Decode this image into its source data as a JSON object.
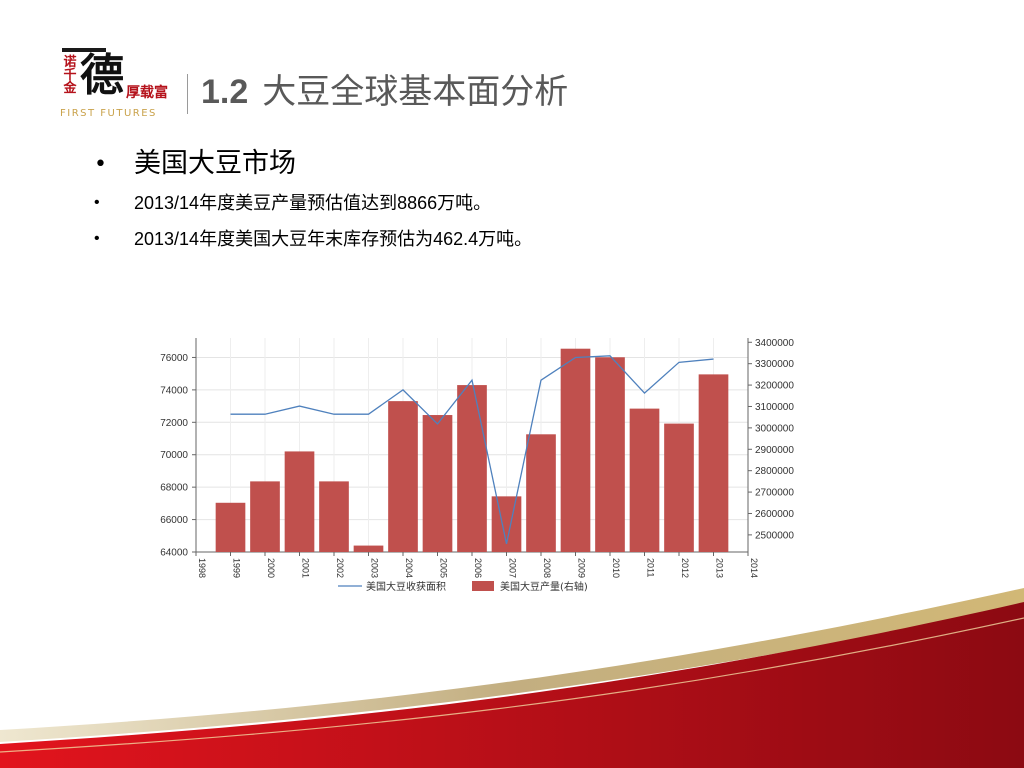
{
  "logo": {
    "small_chars": "诺千金",
    "big_char": "德",
    "slogan": "厚载富",
    "english": "FIRST FUTURES"
  },
  "title": {
    "number": "1.2",
    "text": "大豆全球基本面分析"
  },
  "bullets": [
    "美国大豆市场",
    "2013/14年度美豆产量预估值达到8866万吨。",
    "2013/14年度美国大豆年末库存预估为462.4万吨。"
  ],
  "colors": {
    "bar": "#c0504d",
    "line": "#4f81bd",
    "title_text": "#595959",
    "brand_red": "#b5121b",
    "gold": "#c9a24b"
  },
  "chart_data": {
    "type": "bar+line",
    "x_ticks": [
      "1998",
      "1999",
      "2000",
      "2001",
      "2002",
      "2003",
      "2004",
      "2005",
      "2006",
      "2007",
      "2008",
      "2009",
      "2010",
      "2011",
      "2012",
      "2013",
      "2014"
    ],
    "x": [
      "1999",
      "2000",
      "2001",
      "2002",
      "2003",
      "2004",
      "2005",
      "2006",
      "2007",
      "2008",
      "2009",
      "2010",
      "2011",
      "2012",
      "2013"
    ],
    "series": [
      {
        "name": "美国大豆收获面积",
        "type": "line",
        "axis": "left",
        "values": [
          72500,
          72500,
          73000,
          72500,
          72500,
          74000,
          71900,
          74600,
          64500,
          74600,
          76000,
          76100,
          73800,
          75700,
          75900
        ]
      },
      {
        "name": "美国大豆产量(右轴)",
        "type": "bar",
        "axis": "right",
        "values": [
          2650000,
          2750000,
          2890000,
          2750000,
          2450000,
          3125000,
          3060000,
          3200000,
          2680000,
          2970000,
          3370000,
          3330000,
          3090000,
          3020000,
          3250000
        ]
      }
    ],
    "y_left": {
      "range": [
        64000,
        77200
      ],
      "ticks": [
        "64000",
        "66000",
        "68000",
        "70000",
        "72000",
        "74000",
        "76000"
      ]
    },
    "y_right": {
      "range": [
        2420000,
        3420000
      ],
      "ticks": [
        "2500000",
        "2600000",
        "2700000",
        "2800000",
        "2900000",
        "3000000",
        "3100000",
        "3200000",
        "3300000",
        "3400000"
      ]
    },
    "grid": true,
    "legend_position": "bottom"
  }
}
